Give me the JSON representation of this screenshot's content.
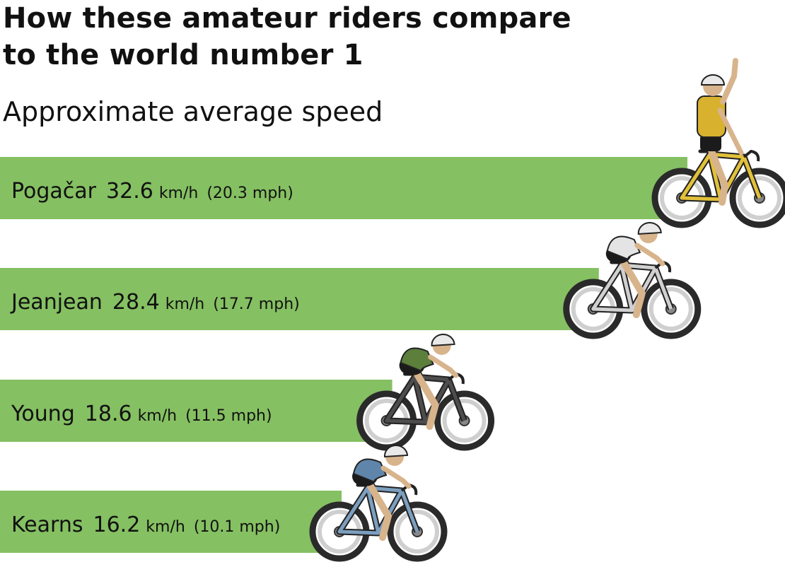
{
  "title": "How these amateur riders compare to the world number 1",
  "subtitle": "Approximate average speed",
  "colors": {
    "bar": "#85c062",
    "wheel": "#2a2a2a",
    "tire_inner": "#cfcfcf",
    "skin": "#d8b48c",
    "shorts": "#1b1b1b",
    "helmet": "#e9e9e9"
  },
  "chart_data": {
    "type": "bar",
    "orientation": "horizontal",
    "unit": "km/h",
    "categories": [
      "Pogačar",
      "Jeanjean",
      "Young",
      "Kearns"
    ],
    "series": [
      {
        "name": "km/h",
        "values": [
          32.6,
          28.4,
          18.6,
          16.2
        ]
      },
      {
        "name": "mph",
        "values": [
          20.3,
          17.7,
          11.5,
          10.1
        ]
      }
    ],
    "bars": [
      {
        "rider": "Pogačar",
        "kmh": "32.6",
        "kmh_unit": "km/h",
        "mph": "(20.3 mph)",
        "jersey": "#d8b22e",
        "frame": "#e2c13a",
        "icon": "cyclist-celebrating-icon"
      },
      {
        "rider": "Jeanjean",
        "kmh": "28.4",
        "kmh_unit": "km/h",
        "mph": "(17.7 mph)",
        "jersey": "#e4e4e4",
        "frame": "#d0d0d0",
        "icon": "cyclist-icon"
      },
      {
        "rider": "Young",
        "kmh": "18.6",
        "kmh_unit": "km/h",
        "mph": "(11.5 mph)",
        "jersey": "#5c7f3c",
        "frame": "#4d4d4d",
        "icon": "cyclist-icon"
      },
      {
        "rider": "Kearns",
        "kmh": "16.2",
        "kmh_unit": "km/h",
        "mph": "(10.1 mph)",
        "jersey": "#5f86aa",
        "frame": "#7c9fbf",
        "icon": "cyclist-icon"
      }
    ],
    "legend": "none",
    "grid": false
  }
}
